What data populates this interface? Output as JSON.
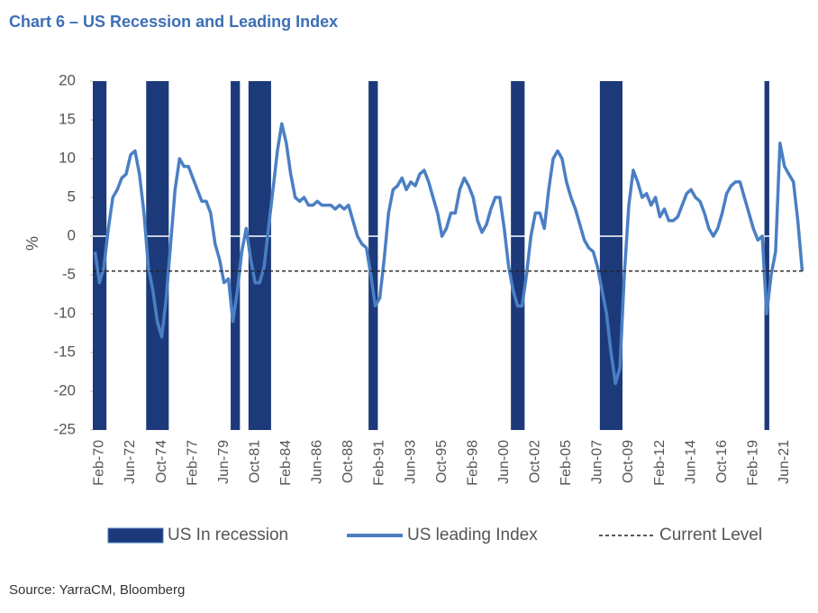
{
  "chart_data": {
    "type": "line",
    "title": "Chart 6 – US Recession and Leading Index",
    "source": "Source: YarraCM, Bloomberg",
    "y_label": "%",
    "ylim": [
      -25,
      20
    ],
    "yticks": [
      20,
      15,
      10,
      5,
      0,
      -5,
      -10,
      -15,
      -20,
      -25
    ],
    "legend": "bottom",
    "categories": [
      null,
      "Feb-70",
      null,
      null,
      null,
      null,
      null,
      null,
      "Jun-72",
      null,
      null,
      null,
      null,
      null,
      null,
      "Oct-74",
      null,
      null,
      null,
      null,
      null,
      null,
      "Feb-77",
      null,
      null,
      null,
      null,
      null,
      null,
      "Jun-79",
      null,
      null,
      null,
      null,
      null,
      null,
      "Oct-81",
      null,
      null,
      null,
      null,
      null,
      null,
      "Feb-84",
      null,
      null,
      null,
      null,
      null,
      null,
      "Jun-86",
      null,
      null,
      null,
      null,
      null,
      null,
      "Oct-88",
      null,
      null,
      null,
      null,
      null,
      null,
      "Feb-91",
      null,
      null,
      null,
      null,
      null,
      null,
      "Jun-93",
      null,
      null,
      null,
      null,
      null,
      null,
      "Oct-95",
      null,
      null,
      null,
      null,
      null,
      null,
      "Feb-98",
      null,
      null,
      null,
      null,
      null,
      null,
      "Jun-00",
      null,
      null,
      null,
      null,
      null,
      null,
      "Oct-02",
      null,
      null,
      null,
      null,
      null,
      null,
      "Feb-05",
      null,
      null,
      null,
      null,
      null,
      null,
      "Jun-07",
      null,
      null,
      null,
      null,
      null,
      null,
      "Oct-09",
      null,
      null,
      null,
      null,
      null,
      null,
      "Feb-12",
      null,
      null,
      null,
      null,
      null,
      null,
      "Jun-14",
      null,
      null,
      null,
      null,
      null,
      null,
      "Oct-16",
      null,
      null,
      null,
      null,
      null,
      null,
      "Feb-19",
      null,
      null,
      null,
      null,
      null,
      null,
      "Jun-21",
      null,
      null,
      null,
      null
    ],
    "series": [
      {
        "name": "US In recession",
        "type": "bar",
        "color": "#1c3a7a",
        "values": [
          20,
          20,
          20,
          null,
          null,
          null,
          null,
          null,
          null,
          null,
          null,
          null,
          20,
          20,
          20,
          20,
          20,
          null,
          null,
          null,
          null,
          null,
          null,
          null,
          null,
          null,
          null,
          null,
          null,
          null,
          null,
          20,
          20,
          null,
          null,
          20,
          20,
          20,
          20,
          20,
          null,
          null,
          null,
          null,
          null,
          null,
          null,
          null,
          null,
          null,
          null,
          null,
          null,
          null,
          null,
          null,
          null,
          null,
          null,
          null,
          null,
          null,
          20,
          20,
          null,
          null,
          null,
          null,
          null,
          null,
          null,
          null,
          null,
          null,
          null,
          null,
          null,
          null,
          null,
          null,
          null,
          null,
          null,
          null,
          null,
          null,
          null,
          null,
          null,
          null,
          null,
          null,
          null,
          null,
          20,
          20,
          20,
          null,
          null,
          null,
          null,
          null,
          null,
          null,
          null,
          null,
          null,
          null,
          null,
          null,
          null,
          null,
          null,
          null,
          20,
          20,
          20,
          20,
          20,
          null,
          null,
          null,
          null,
          null,
          null,
          null,
          null,
          null,
          null,
          null,
          null,
          null,
          null,
          null,
          null,
          null,
          null,
          null,
          null,
          null,
          null,
          null,
          null,
          null,
          null,
          null,
          null,
          null,
          null,
          null,
          null,
          20,
          null,
          null,
          null,
          null,
          null,
          null,
          null,
          null
        ]
      },
      {
        "name": "US leading Index",
        "type": "line",
        "color": "#4a7fc4",
        "values": [
          -2,
          -6,
          -4,
          1,
          5,
          6,
          7.5,
          8,
          10.5,
          11,
          8,
          3,
          -4,
          -7,
          -11,
          -13,
          -8,
          -1,
          6,
          10,
          9,
          9,
          7.5,
          6,
          4.5,
          4.5,
          3,
          -1,
          -3,
          -6,
          -5.5,
          -11,
          -7,
          -2,
          1,
          -3,
          -6,
          -6,
          -4,
          1,
          6,
          11,
          14.5,
          12,
          8,
          5,
          4.5,
          5,
          4,
          4,
          4.5,
          4,
          4,
          4,
          3.5,
          4,
          3.5,
          4,
          2,
          0,
          -1,
          -1.5,
          -5,
          -9,
          -8,
          -3,
          3,
          6,
          6.5,
          7.5,
          6,
          7,
          6.5,
          8,
          8.5,
          7,
          5,
          3,
          0,
          1,
          3,
          3,
          6,
          7.5,
          6.5,
          5,
          2,
          0.5,
          1.5,
          3.5,
          5,
          5,
          1,
          -4,
          -7,
          -9,
          -9,
          -5,
          0,
          3,
          3,
          1,
          6,
          10,
          11,
          10,
          7,
          5,
          3.5,
          1.5,
          -0.5,
          -1.5,
          -2,
          -4,
          -7,
          -10,
          -15,
          -19,
          -17,
          -5,
          4,
          8.5,
          7,
          5,
          5.5,
          4,
          5,
          2.5,
          3.5,
          2,
          2,
          2.5,
          4,
          5.5,
          6,
          5,
          4.5,
          3,
          1,
          0,
          1,
          3,
          5.5,
          6.5,
          7,
          7,
          5,
          3,
          1,
          -0.5,
          0,
          -10,
          -5,
          -2,
          12,
          9,
          8,
          7,
          2,
          -4.5
        ]
      },
      {
        "name": "Current Level",
        "type": "hline",
        "color": "#222222",
        "value": -4.5
      }
    ]
  }
}
